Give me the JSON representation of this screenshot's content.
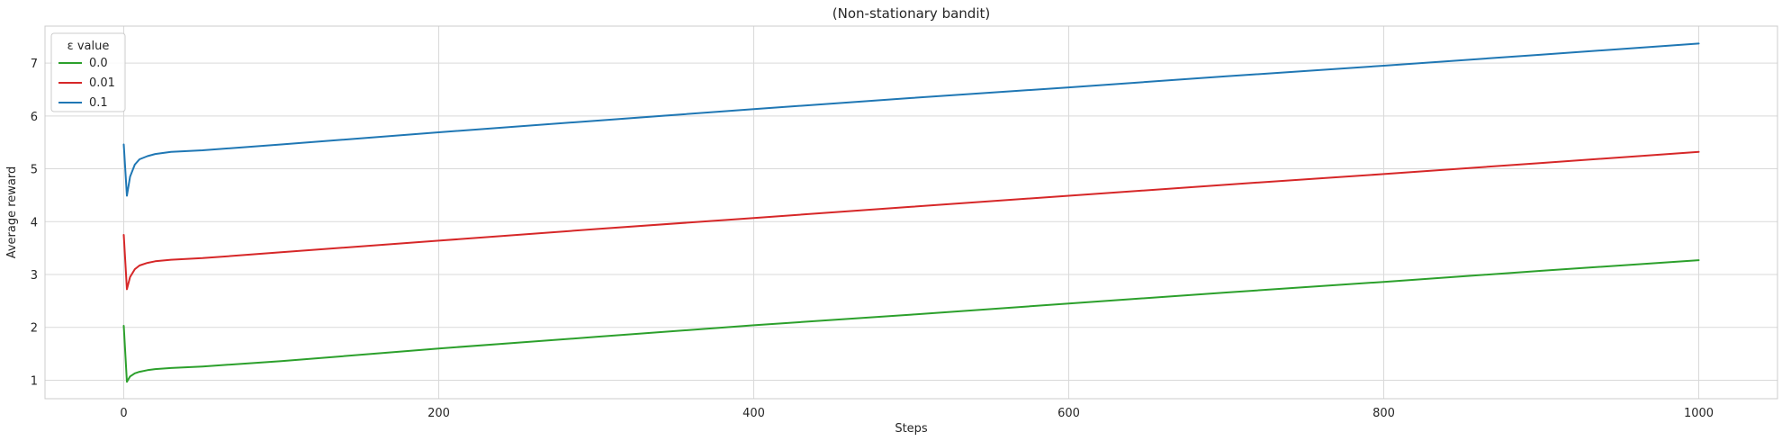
{
  "chart_data": {
    "type": "line",
    "title": "(Non-stationary bandit)",
    "xlabel": "Steps",
    "ylabel": "Average reward",
    "xlim": [
      -50,
      1050
    ],
    "ylim": [
      0.65,
      7.7
    ],
    "xticks": [
      0,
      200,
      400,
      600,
      800,
      1000
    ],
    "yticks": [
      1,
      2,
      3,
      4,
      5,
      6,
      7
    ],
    "grid": true,
    "legend": {
      "title": "ε value",
      "placement": "top-left"
    },
    "series": [
      {
        "name": "0.0",
        "color": "#2ca02c",
        "x": [
          0,
          2,
          4,
          7,
          10,
          15,
          20,
          30,
          50,
          100,
          200,
          300,
          400,
          500,
          600,
          700,
          800,
          900,
          1000
        ],
        "y": [
          2.03,
          0.97,
          1.07,
          1.13,
          1.16,
          1.19,
          1.21,
          1.23,
          1.26,
          1.36,
          1.6,
          1.82,
          2.04,
          2.24,
          2.45,
          2.66,
          2.86,
          3.07,
          3.27
        ]
      },
      {
        "name": "0.01",
        "color": "#d62728",
        "x": [
          0,
          2,
          4,
          7,
          10,
          15,
          20,
          30,
          50,
          100,
          200,
          300,
          400,
          500,
          600,
          700,
          800,
          900,
          1000
        ],
        "y": [
          3.75,
          2.72,
          2.95,
          3.1,
          3.17,
          3.22,
          3.25,
          3.28,
          3.31,
          3.42,
          3.64,
          3.86,
          4.07,
          4.28,
          4.49,
          4.7,
          4.9,
          5.11,
          5.32
        ]
      },
      {
        "name": "0.1",
        "color": "#1f77b4",
        "x": [
          0,
          2,
          4,
          7,
          10,
          15,
          20,
          30,
          50,
          100,
          200,
          300,
          400,
          500,
          600,
          700,
          800,
          900,
          1000
        ],
        "y": [
          5.46,
          4.49,
          4.85,
          5.08,
          5.18,
          5.24,
          5.28,
          5.32,
          5.35,
          5.46,
          5.69,
          5.91,
          6.13,
          6.34,
          6.54,
          6.75,
          6.95,
          7.16,
          7.37
        ]
      }
    ]
  }
}
